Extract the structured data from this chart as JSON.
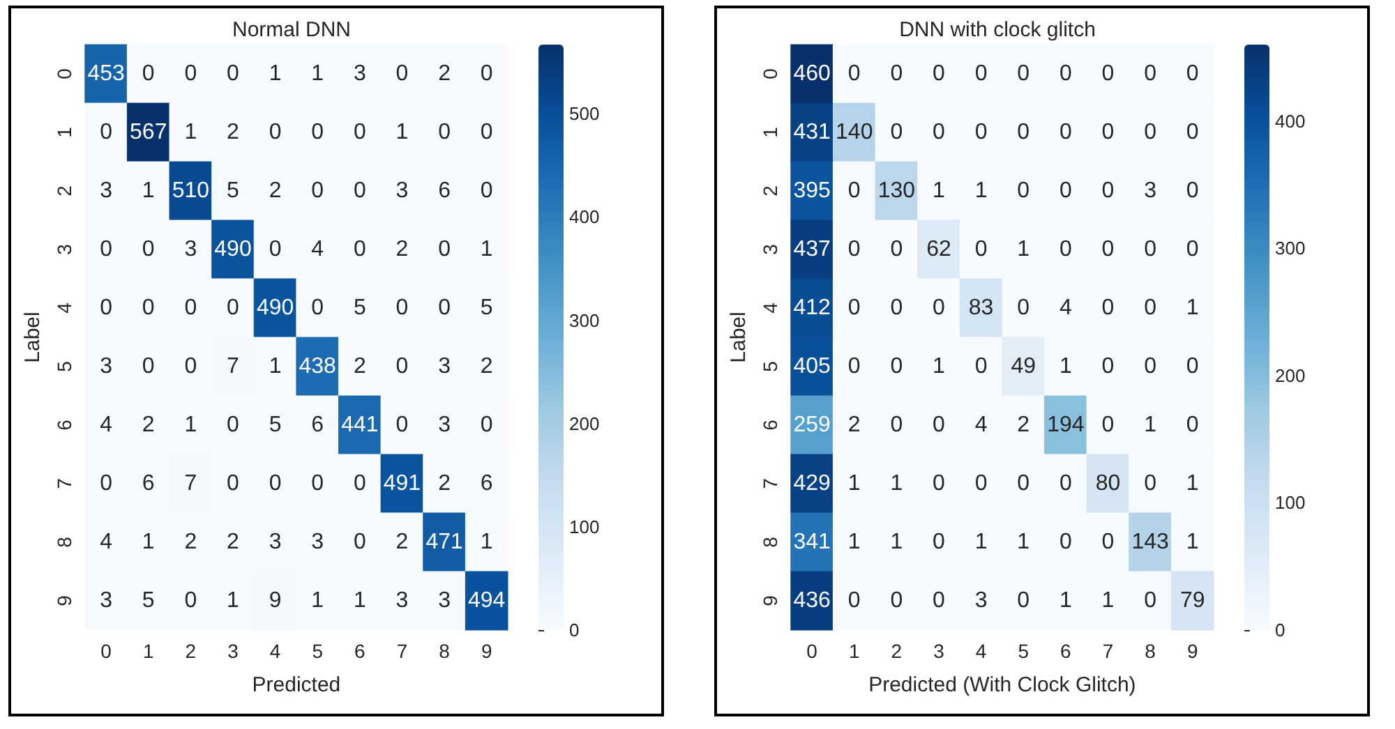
{
  "chart_data": [
    {
      "type": "heatmap",
      "title": "Normal DNN",
      "xlabel": "Predicted",
      "ylabel": "Label",
      "categories": [
        "0",
        "1",
        "2",
        "3",
        "4",
        "5",
        "6",
        "7",
        "8",
        "9"
      ],
      "y_categories": [
        "0",
        "1",
        "2",
        "3",
        "4",
        "5",
        "6",
        "7",
        "8",
        "9"
      ],
      "cells": [
        [
          453,
          0,
          0,
          0,
          1,
          1,
          3,
          0,
          2,
          0
        ],
        [
          0,
          567,
          1,
          2,
          0,
          0,
          0,
          1,
          0,
          0
        ],
        [
          3,
          1,
          510,
          5,
          2,
          0,
          0,
          3,
          6,
          0
        ],
        [
          0,
          0,
          3,
          490,
          0,
          4,
          0,
          2,
          0,
          1
        ],
        [
          0,
          0,
          0,
          0,
          490,
          0,
          5,
          0,
          0,
          5
        ],
        [
          3,
          0,
          0,
          7,
          1,
          438,
          2,
          0,
          3,
          2
        ],
        [
          4,
          2,
          1,
          0,
          5,
          6,
          441,
          0,
          3,
          0
        ],
        [
          0,
          6,
          7,
          0,
          0,
          0,
          0,
          491,
          2,
          6
        ],
        [
          4,
          1,
          2,
          2,
          3,
          3,
          0,
          2,
          471,
          1
        ],
        [
          3,
          5,
          0,
          1,
          9,
          1,
          1,
          3,
          3,
          494
        ]
      ],
      "clim": [
        0,
        567
      ],
      "cticks": [
        0,
        100,
        200,
        300,
        400,
        500
      ],
      "data_labels": true
    },
    {
      "type": "heatmap",
      "title": "DNN with clock glitch",
      "xlabel": "Predicted (With Clock Glitch)",
      "ylabel": "Label",
      "categories": [
        "0",
        "1",
        "2",
        "3",
        "4",
        "5",
        "6",
        "7",
        "8",
        "9"
      ],
      "y_categories": [
        "0",
        "1",
        "2",
        "3",
        "4",
        "5",
        "6",
        "7",
        "8",
        "9"
      ],
      "cells": [
        [
          460,
          0,
          0,
          0,
          0,
          0,
          0,
          0,
          0,
          0
        ],
        [
          431,
          140,
          0,
          0,
          0,
          0,
          0,
          0,
          0,
          0
        ],
        [
          395,
          0,
          130,
          1,
          1,
          0,
          0,
          0,
          3,
          0
        ],
        [
          437,
          0,
          0,
          62,
          0,
          1,
          0,
          0,
          0,
          0
        ],
        [
          412,
          0,
          0,
          0,
          83,
          0,
          4,
          0,
          0,
          1
        ],
        [
          405,
          0,
          0,
          1,
          0,
          49,
          1,
          0,
          0,
          0
        ],
        [
          259,
          2,
          0,
          0,
          4,
          2,
          194,
          0,
          1,
          0
        ],
        [
          429,
          1,
          1,
          0,
          0,
          0,
          0,
          80,
          0,
          1
        ],
        [
          341,
          1,
          1,
          0,
          1,
          1,
          0,
          0,
          143,
          1
        ],
        [
          436,
          0,
          0,
          0,
          3,
          0,
          1,
          1,
          0,
          79
        ]
      ],
      "clim": [
        0,
        460
      ],
      "cticks": [
        0,
        100,
        200,
        300,
        400
      ],
      "data_labels": true
    }
  ]
}
